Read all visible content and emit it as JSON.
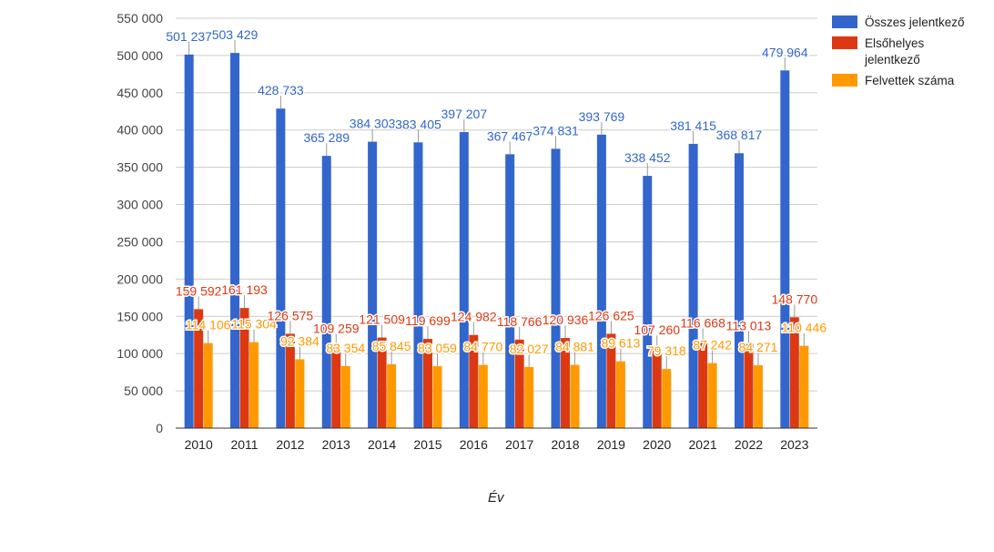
{
  "chart_data": {
    "type": "bar",
    "xlabel": "Év",
    "ylabel": "",
    "ylim": [
      0,
      550000
    ],
    "yticks": [
      0,
      50000,
      100000,
      150000,
      200000,
      250000,
      300000,
      350000,
      400000,
      450000,
      500000,
      550000
    ],
    "ytick_labels": [
      "0",
      "50 000",
      "100 000",
      "150 000",
      "200 000",
      "250 000",
      "300 000",
      "350 000",
      "400 000",
      "450 000",
      "500 000",
      "550 000"
    ],
    "grid": true,
    "legend_position": "right",
    "categories": [
      "2010",
      "2011",
      "2012",
      "2013",
      "2014",
      "2015",
      "2016",
      "2017",
      "2018",
      "2019",
      "2020",
      "2021",
      "2022",
      "2023"
    ],
    "series": [
      {
        "name": "Összes jelentkező",
        "color": "#3366cc",
        "values": [
          501237,
          503429,
          428733,
          365289,
          384303,
          383405,
          397207,
          367467,
          374831,
          393769,
          338452,
          381415,
          368817,
          479964
        ],
        "labels": [
          "501 237",
          "503 429",
          "428 733",
          "365 289",
          "384 303",
          "383 405",
          "397 207",
          "367 467",
          "374 831",
          "393 769",
          "338 452",
          "381 415",
          "368 817",
          "479 964"
        ]
      },
      {
        "name": "Elsőhelyes jelentkező",
        "color": "#dc3912",
        "values": [
          159592,
          161193,
          126575,
          109259,
          121509,
          119699,
          124982,
          118766,
          120936,
          126625,
          107260,
          116668,
          113013,
          148770
        ],
        "labels": [
          "159 592",
          "161 193",
          "126 575",
          "109 259",
          "121 509",
          "119 699",
          "124 982",
          "118 766",
          "120 936",
          "126 625",
          "107 260",
          "116 668",
          "113 013",
          "148 770"
        ]
      },
      {
        "name": "Felvettek száma",
        "color": "#ff9900",
        "values": [
          114106,
          115304,
          92384,
          83354,
          85845,
          83059,
          84770,
          82027,
          84881,
          89613,
          79318,
          87242,
          84271,
          110446
        ],
        "labels": [
          "114 106",
          "115 304",
          "92 384",
          "83 354",
          "85 845",
          "83 059",
          "84 770",
          "82 027",
          "84 881",
          "89 613",
          "79 318",
          "87 242",
          "84 271",
          "110 446"
        ]
      }
    ]
  },
  "legend": {
    "items": [
      "Összes jelentkező",
      "Elsőhelyes jelentkező",
      "Felvettek száma"
    ],
    "colors": [
      "#3366cc",
      "#dc3912",
      "#ff9900"
    ]
  }
}
